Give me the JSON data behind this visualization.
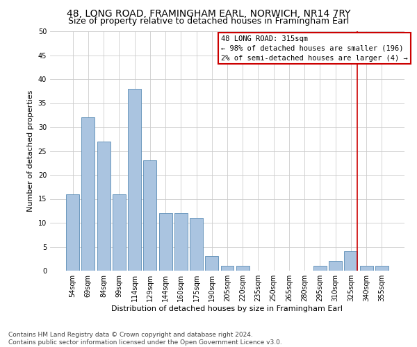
{
  "title": "48, LONG ROAD, FRAMINGHAM EARL, NORWICH, NR14 7RY",
  "subtitle": "Size of property relative to detached houses in Framingham Earl",
  "xlabel": "Distribution of detached houses by size in Framingham Earl",
  "ylabel": "Number of detached properties",
  "categories": [
    "54sqm",
    "69sqm",
    "84sqm",
    "99sqm",
    "114sqm",
    "129sqm",
    "144sqm",
    "160sqm",
    "175sqm",
    "190sqm",
    "205sqm",
    "220sqm",
    "235sqm",
    "250sqm",
    "265sqm",
    "280sqm",
    "295sqm",
    "310sqm",
    "325sqm",
    "340sqm",
    "355sqm"
  ],
  "values": [
    16,
    32,
    27,
    16,
    38,
    23,
    12,
    12,
    11,
    3,
    1,
    1,
    0,
    0,
    0,
    0,
    1,
    2,
    4,
    1,
    1
  ],
  "bar_color": "#aac4e0",
  "bar_edge_color": "#5a8bb5",
  "grid_color": "#cccccc",
  "bg_color": "#ffffff",
  "annotation_box_color": "#cc0000",
  "vline_color": "#cc0000",
  "vline_x_index": 18,
  "annotation_title": "48 LONG ROAD: 315sqm",
  "annotation_line1": "← 98% of detached houses are smaller (196)",
  "annotation_line2": "2% of semi-detached houses are larger (4) →",
  "ylim": [
    0,
    50
  ],
  "yticks": [
    0,
    5,
    10,
    15,
    20,
    25,
    30,
    35,
    40,
    45,
    50
  ],
  "footer_line1": "Contains HM Land Registry data © Crown copyright and database right 2024.",
  "footer_line2": "Contains public sector information licensed under the Open Government Licence v3.0.",
  "title_fontsize": 10,
  "subtitle_fontsize": 9,
  "axis_label_fontsize": 8,
  "tick_fontsize": 7,
  "annotation_fontsize": 7.5,
  "footer_fontsize": 6.5
}
